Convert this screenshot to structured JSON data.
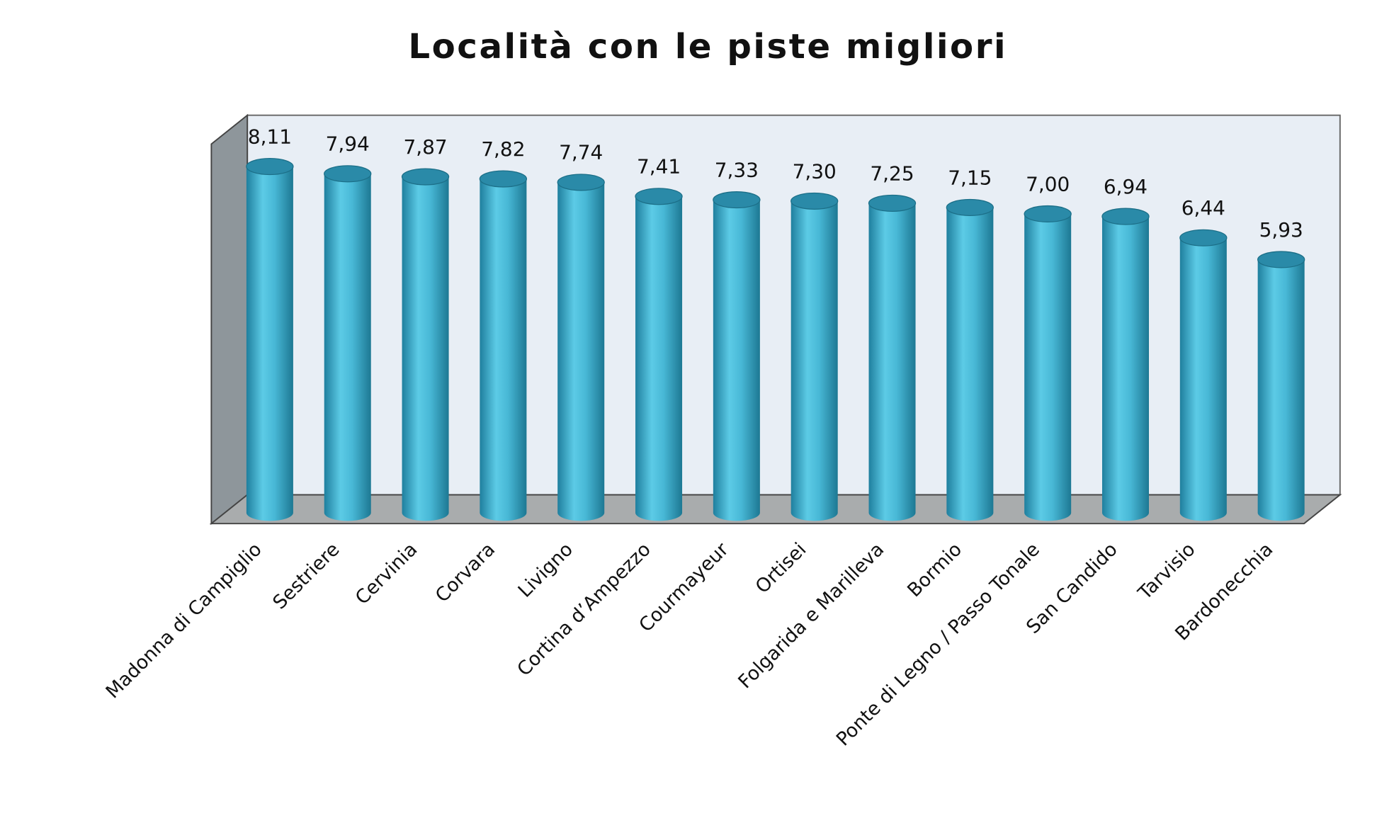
{
  "chart_data": {
    "type": "bar3d",
    "title": "Località con le piste migliori",
    "categories": [
      "Madonna di Campiglio",
      "Sestriere",
      "Cervinia",
      "Corvara",
      "Livigno",
      "Cortina d’Ampezzo",
      "Courmayeur",
      "Ortisei",
      "Folgarida e Marilleva",
      "Bormio",
      "Ponte di Legno / Passo Tonale",
      "San Candido",
      "Tarvisio",
      "Bardonecchia"
    ],
    "values": [
      8.11,
      7.94,
      7.87,
      7.82,
      7.74,
      7.41,
      7.33,
      7.3,
      7.25,
      7.15,
      7.0,
      6.94,
      6.44,
      5.93
    ],
    "value_labels": [
      "8,11",
      "7,94",
      "7,87",
      "7,82",
      "7,74",
      "7,41",
      "7,33",
      "7,30",
      "7,25",
      "7,15",
      "7,00",
      "6,94",
      "6,44",
      "5,93"
    ],
    "color": "#3fafcf"
  }
}
